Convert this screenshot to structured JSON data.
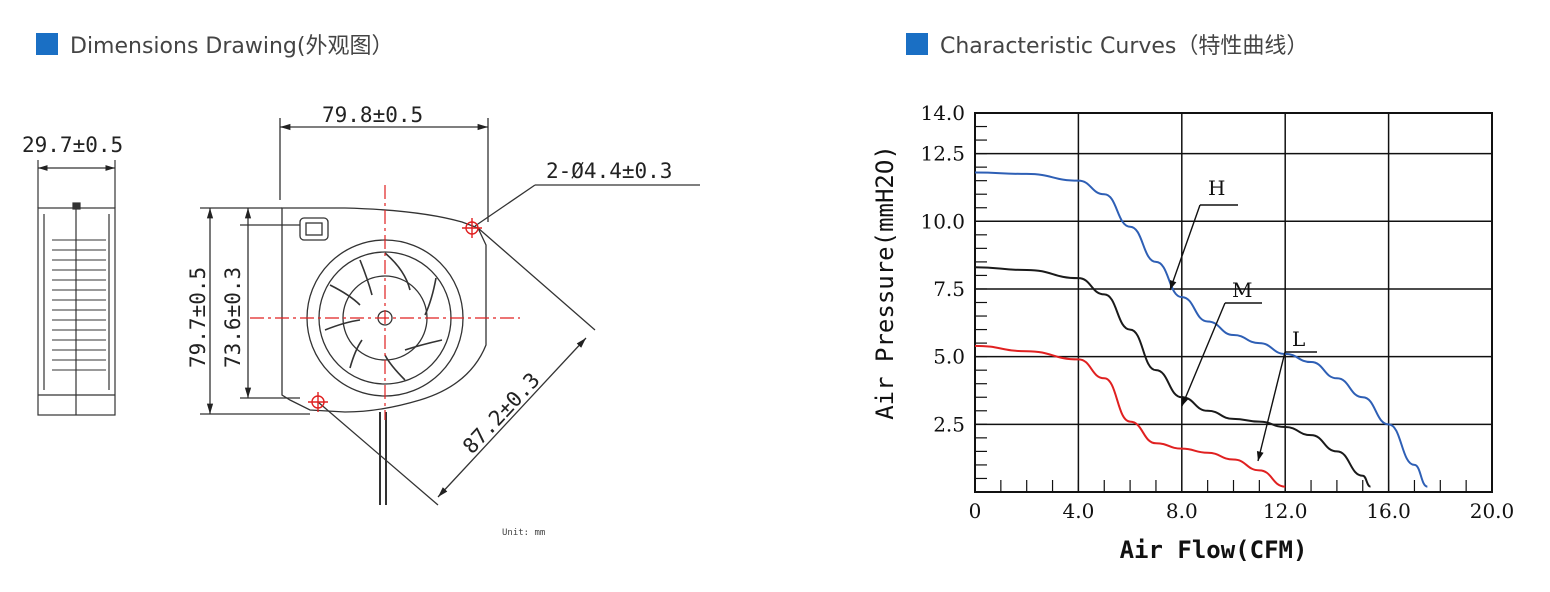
{
  "colors": {
    "accent": "#1a6fc4",
    "curve_h": "#2e5fb5",
    "curve_m": "#1a1a1a",
    "curve_l": "#e02020",
    "crosshair": "#e02020"
  },
  "left_section": {
    "title": "Dimensions Drawing(外观图）",
    "dim_side_width": "29.7±0.5",
    "dim_top_width": "79.8±0.5",
    "dim_hole": "2-Ø4.4±0.3",
    "dim_height_outer": "79.7±0.5",
    "dim_height_inner": "73.6±0.3",
    "dim_diagonal": "87.2±0.3",
    "unit_note": "Unit: mm"
  },
  "right_section": {
    "title": "Characteristic Curves（特性曲线）"
  },
  "chart_data": {
    "type": "line",
    "xlabel": "Air Flow(CFM)",
    "ylabel": "Air Pressure(mmH2O)",
    "xlim": [
      0,
      20
    ],
    "ylim": [
      0,
      14
    ],
    "x_ticks": [
      "0",
      "4.0",
      "8.0",
      "12.0",
      "16.0",
      "20.0"
    ],
    "y_ticks": [
      "14.0",
      "12.5",
      "10.0",
      "7.5",
      "5.0",
      "2.5"
    ],
    "grid": true,
    "series": [
      {
        "name": "H",
        "color": "#2e5fb5",
        "points": [
          [
            0,
            11.8
          ],
          [
            2,
            11.75
          ],
          [
            4,
            11.5
          ],
          [
            5,
            11.0
          ],
          [
            6,
            9.8
          ],
          [
            7,
            8.5
          ],
          [
            8,
            7.2
          ],
          [
            9,
            6.3
          ],
          [
            10,
            5.8
          ],
          [
            11,
            5.5
          ],
          [
            12,
            5.1
          ],
          [
            13,
            4.8
          ],
          [
            14,
            4.2
          ],
          [
            15,
            3.5
          ],
          [
            16,
            2.5
          ],
          [
            17,
            1.0
          ],
          [
            17.5,
            0.2
          ]
        ]
      },
      {
        "name": "M",
        "color": "#1a1a1a",
        "points": [
          [
            0,
            8.3
          ],
          [
            2,
            8.2
          ],
          [
            4,
            7.9
          ],
          [
            5,
            7.3
          ],
          [
            6,
            6.0
          ],
          [
            7,
            4.5
          ],
          [
            8,
            3.5
          ],
          [
            9,
            3.0
          ],
          [
            10,
            2.7
          ],
          [
            11,
            2.6
          ],
          [
            12,
            2.4
          ],
          [
            13,
            2.1
          ],
          [
            14,
            1.5
          ],
          [
            15,
            0.6
          ],
          [
            15.3,
            0.2
          ]
        ]
      },
      {
        "name": "L",
        "color": "#e02020",
        "points": [
          [
            0,
            5.4
          ],
          [
            2,
            5.2
          ],
          [
            4,
            4.9
          ],
          [
            5,
            4.2
          ],
          [
            6,
            2.6
          ],
          [
            7,
            1.8
          ],
          [
            8,
            1.6
          ],
          [
            9,
            1.45
          ],
          [
            10,
            1.2
          ],
          [
            11,
            0.8
          ],
          [
            12,
            0.2
          ]
        ]
      }
    ]
  }
}
